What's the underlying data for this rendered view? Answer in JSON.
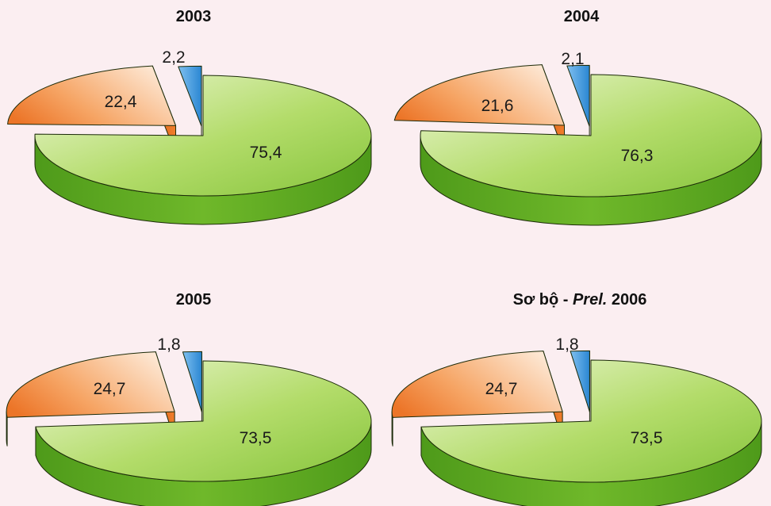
{
  "chart_data": [
    {
      "type": "pie",
      "title": "2003",
      "values": [
        75.4,
        22.4,
        2.2
      ],
      "labels": [
        "75,4",
        "22,4",
        "2,2"
      ],
      "colors": [
        "#6fb82a",
        "#f07e2c",
        "#3f9be0"
      ]
    },
    {
      "type": "pie",
      "title": "2004",
      "values": [
        76.3,
        21.6,
        2.1
      ],
      "labels": [
        "76,3",
        "21,6",
        "2,1"
      ],
      "colors": [
        "#6fb82a",
        "#f07e2c",
        "#3f9be0"
      ]
    },
    {
      "type": "pie",
      "title": "2005",
      "values": [
        73.5,
        24.7,
        1.8
      ],
      "labels": [
        "73,5",
        "24,7",
        "1,8"
      ],
      "colors": [
        "#6fb82a",
        "#f07e2c",
        "#3f9be0"
      ]
    },
    {
      "type": "pie",
      "title_parts": [
        "Sơ bộ - ",
        "Prel.",
        " 2006"
      ],
      "values": [
        73.5,
        24.7,
        1.8
      ],
      "labels": [
        "73,5",
        "24,7",
        "1,8"
      ],
      "colors": [
        "#6fb82a",
        "#f07e2c",
        "#3f9be0"
      ]
    }
  ]
}
